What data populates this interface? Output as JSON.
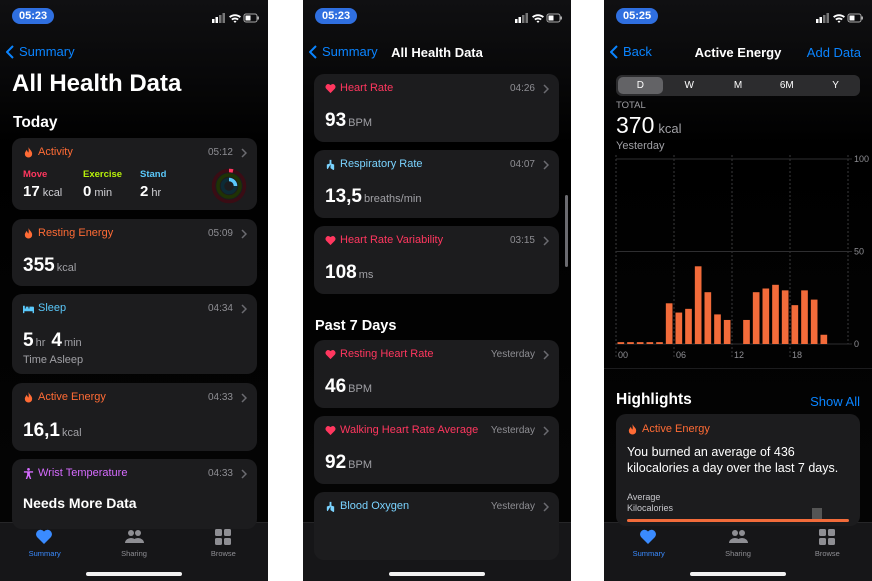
{
  "screens": [
    {
      "status_time": "05:23",
      "back": "Summary",
      "title": "All Health Data",
      "section": "Today",
      "cards": [
        {
          "title": "Activity",
          "time": "05:12",
          "rings": [
            {
              "label": "Move",
              "value": "17",
              "unit": "kcal"
            },
            {
              "label": "Exercise",
              "value": "0",
              "unit": "min"
            },
            {
              "label": "Stand",
              "value": "2",
              "unit": "hr"
            }
          ]
        },
        {
          "title": "Resting Energy",
          "time": "05:09",
          "value": "355",
          "unit": "kcal"
        },
        {
          "title": "Sleep",
          "time": "04:34",
          "value": "5",
          "unit": "hr",
          "value2": "4",
          "unit2": "min",
          "note": "Time Asleep"
        },
        {
          "title": "Active Energy",
          "time": "04:33",
          "value": "16,1",
          "unit": "kcal"
        },
        {
          "title": "Wrist Temperature",
          "time": "04:33",
          "note": "Needs More Data"
        }
      ]
    },
    {
      "status_time": "05:23",
      "back": "Summary",
      "title": "All Health Data",
      "cards": [
        {
          "title": "Heart Rate",
          "time": "04:26",
          "value": "93",
          "unit": "BPM"
        },
        {
          "title": "Respiratory Rate",
          "time": "04:07",
          "value": "13,5",
          "unit": "breaths/min"
        },
        {
          "title": "Heart Rate Variability",
          "time": "03:15",
          "value": "108",
          "unit": "ms"
        }
      ],
      "section": "Past 7 Days",
      "cards2": [
        {
          "title": "Resting Heart Rate",
          "time": "Yesterday",
          "value": "46",
          "unit": "BPM"
        },
        {
          "title": "Walking Heart Rate Average",
          "time": "Yesterday",
          "value": "92",
          "unit": "BPM"
        },
        {
          "title": "Blood Oxygen",
          "time": "Yesterday"
        }
      ]
    },
    {
      "status_time": "05:25",
      "back": "Back",
      "title": "Active Energy",
      "action": "Add Data",
      "segments": [
        "D",
        "W",
        "M",
        "6M",
        "Y"
      ],
      "total_label": "TOTAL",
      "total": "370",
      "total_unit": "kcal",
      "period": "Yesterday",
      "highlights": "Highlights",
      "show_all": "Show All",
      "highlight_card": {
        "title": "Active Energy",
        "text": "You burned an average of 436 kilocalories a day over the last 7 days.",
        "avg_label": "Average Kilocalories"
      }
    }
  ],
  "tabs": [
    "Summary",
    "Sharing",
    "Browse"
  ],
  "chart_data": {
    "type": "bar",
    "categories": [
      "00",
      null,
      null,
      null,
      null,
      null,
      "06",
      null,
      null,
      null,
      null,
      null,
      "12",
      null,
      null,
      null,
      null,
      null,
      "18",
      null,
      null,
      null,
      null,
      null
    ],
    "values": [
      1,
      1,
      1,
      1,
      1,
      22,
      17,
      19,
      42,
      28,
      16,
      13,
      0,
      13,
      28,
      30,
      32,
      29,
      21,
      29,
      24,
      5,
      0,
      0
    ],
    "color": "#f26b3a",
    "ylim": [
      0,
      100
    ],
    "yticks": [
      0,
      50,
      100
    ],
    "grid": true
  }
}
